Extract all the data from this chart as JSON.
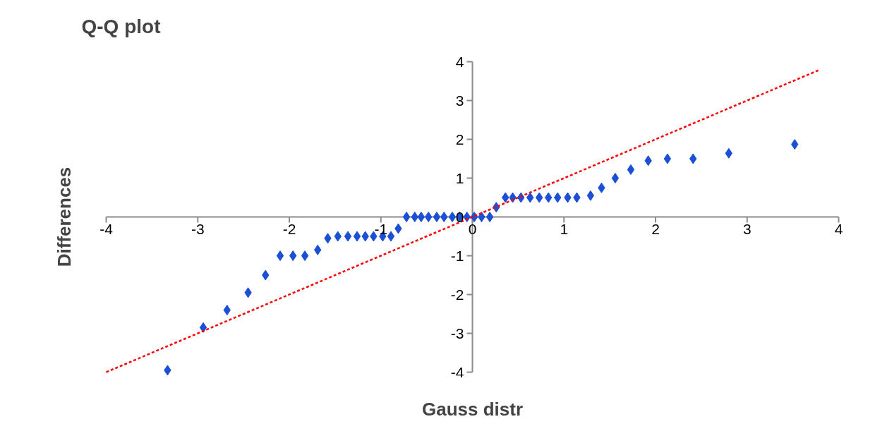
{
  "chart_data": {
    "type": "scatter",
    "title": "Q-Q plot",
    "xlabel": "Gauss distr",
    "ylabel": "Differences",
    "xlim": [
      -4,
      4
    ],
    "ylim": [
      -4,
      4
    ],
    "xticks": [
      -4,
      -3,
      -2,
      -1,
      0,
      1,
      2,
      3,
      4
    ],
    "yticks": [
      -4,
      -3,
      -2,
      -1,
      0,
      1,
      2,
      3,
      4
    ],
    "series": [
      {
        "type": "scatter",
        "marker": "diamond",
        "color": "#1a4fd6",
        "x": [
          -3.33,
          -2.94,
          -2.68,
          -2.45,
          -2.26,
          -2.1,
          -1.96,
          -1.83,
          -1.69,
          -1.58,
          -1.47,
          -1.36,
          -1.26,
          -1.17,
          -1.08,
          -0.98,
          -0.89,
          -0.81,
          -0.72,
          -0.63,
          -0.56,
          -0.48,
          -0.39,
          -0.31,
          -0.22,
          -0.14,
          -0.06,
          0.02,
          0.1,
          0.19,
          0.26,
          0.36,
          0.44,
          0.53,
          0.63,
          0.73,
          0.83,
          0.93,
          1.04,
          1.14,
          1.29,
          1.41,
          1.56,
          1.73,
          1.92,
          2.13,
          2.41,
          2.8,
          3.52
        ],
        "values": [
          -3.95,
          -2.85,
          -2.4,
          -1.95,
          -1.5,
          -1.0,
          -1.0,
          -1.0,
          -0.85,
          -0.55,
          -0.5,
          -0.5,
          -0.5,
          -0.5,
          -0.5,
          -0.5,
          -0.5,
          -0.3,
          0.0,
          0.0,
          0.0,
          0.0,
          0.0,
          0.0,
          0.0,
          0.0,
          0.0,
          0.0,
          0.0,
          0.0,
          0.25,
          0.5,
          0.5,
          0.5,
          0.5,
          0.5,
          0.5,
          0.5,
          0.5,
          0.5,
          0.55,
          0.75,
          1.0,
          1.22,
          1.45,
          1.5,
          1.5,
          1.64,
          1.87
        ]
      },
      {
        "type": "line",
        "line_style": "dashed",
        "color": "#ff0000",
        "x": [
          -4,
          3.78
        ],
        "values": [
          -4,
          3.78
        ]
      }
    ]
  }
}
